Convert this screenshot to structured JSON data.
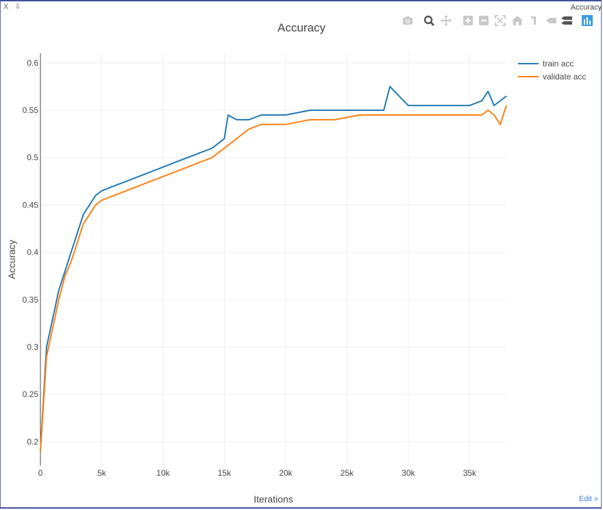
{
  "toolbar": {
    "left_icons": [
      "X",
      "⇩"
    ],
    "window_title": "Accuracy",
    "modebar_icons": [
      "camera-icon",
      "zoom-icon",
      "pan-icon",
      "zoom-in-icon",
      "zoom-out-icon",
      "autoscale-icon",
      "reset-axes-icon",
      "spike-lines-icon",
      "compare-hover-icon",
      "closest-hover-icon",
      "plotly-logo-icon"
    ]
  },
  "edit_link": "Edit »",
  "colors": {
    "train": "#1f77b4",
    "validate": "#ff7f0e",
    "grid": "#eeeeee"
  },
  "chart_data": {
    "type": "line",
    "title": "Accuracy",
    "xlabel": "Iterations",
    "ylabel": "Accuracy",
    "xlim": [
      0,
      38000
    ],
    "ylim": [
      0.175,
      0.61
    ],
    "xticks": [
      0,
      5000,
      10000,
      15000,
      20000,
      25000,
      30000,
      35000
    ],
    "xtick_labels": [
      "0",
      "5k",
      "10k",
      "15k",
      "20k",
      "25k",
      "30k",
      "35k"
    ],
    "yticks": [
      0.2,
      0.25,
      0.3,
      0.35,
      0.4,
      0.45,
      0.5,
      0.55,
      0.6
    ],
    "ytick_labels": [
      "0.2",
      "0.25",
      "0.3",
      "0.35",
      "0.4",
      "0.45",
      "0.5",
      "0.55",
      "0.6"
    ],
    "grid": true,
    "legend": "top-right",
    "series": [
      {
        "name": "train acc",
        "x": [
          0,
          500,
          1000,
          1500,
          2000,
          2500,
          3000,
          3500,
          4000,
          4500,
          5000,
          6000,
          7000,
          8000,
          9000,
          10000,
          11000,
          12000,
          13000,
          14000,
          15000,
          15300,
          16000,
          17000,
          18000,
          19000,
          20000,
          22000,
          24000,
          26000,
          28000,
          28500,
          30000,
          32000,
          34000,
          35000,
          36000,
          36500,
          37000,
          37500,
          38000
        ],
        "y": [
          0.19,
          0.3,
          0.33,
          0.36,
          0.38,
          0.4,
          0.42,
          0.44,
          0.45,
          0.46,
          0.465,
          0.47,
          0.475,
          0.48,
          0.485,
          0.49,
          0.495,
          0.5,
          0.505,
          0.51,
          0.52,
          0.545,
          0.54,
          0.54,
          0.545,
          0.545,
          0.545,
          0.55,
          0.55,
          0.55,
          0.55,
          0.575,
          0.555,
          0.555,
          0.555,
          0.555,
          0.56,
          0.57,
          0.555,
          0.56,
          0.565
        ]
      },
      {
        "name": "validate acc",
        "x": [
          0,
          500,
          1000,
          1500,
          2000,
          2500,
          3000,
          3500,
          4000,
          4500,
          5000,
          6000,
          7000,
          8000,
          9000,
          10000,
          11000,
          12000,
          13000,
          14000,
          15000,
          16000,
          17000,
          18000,
          19000,
          20000,
          22000,
          24000,
          26000,
          28000,
          30000,
          32000,
          34000,
          35000,
          36000,
          36500,
          37000,
          37500,
          38000
        ],
        "y": [
          0.19,
          0.29,
          0.32,
          0.35,
          0.375,
          0.39,
          0.41,
          0.43,
          0.44,
          0.45,
          0.455,
          0.46,
          0.465,
          0.47,
          0.475,
          0.48,
          0.485,
          0.49,
          0.495,
          0.5,
          0.51,
          0.52,
          0.53,
          0.535,
          0.535,
          0.535,
          0.54,
          0.54,
          0.545,
          0.545,
          0.545,
          0.545,
          0.545,
          0.545,
          0.545,
          0.55,
          0.545,
          0.535,
          0.555
        ]
      }
    ]
  }
}
